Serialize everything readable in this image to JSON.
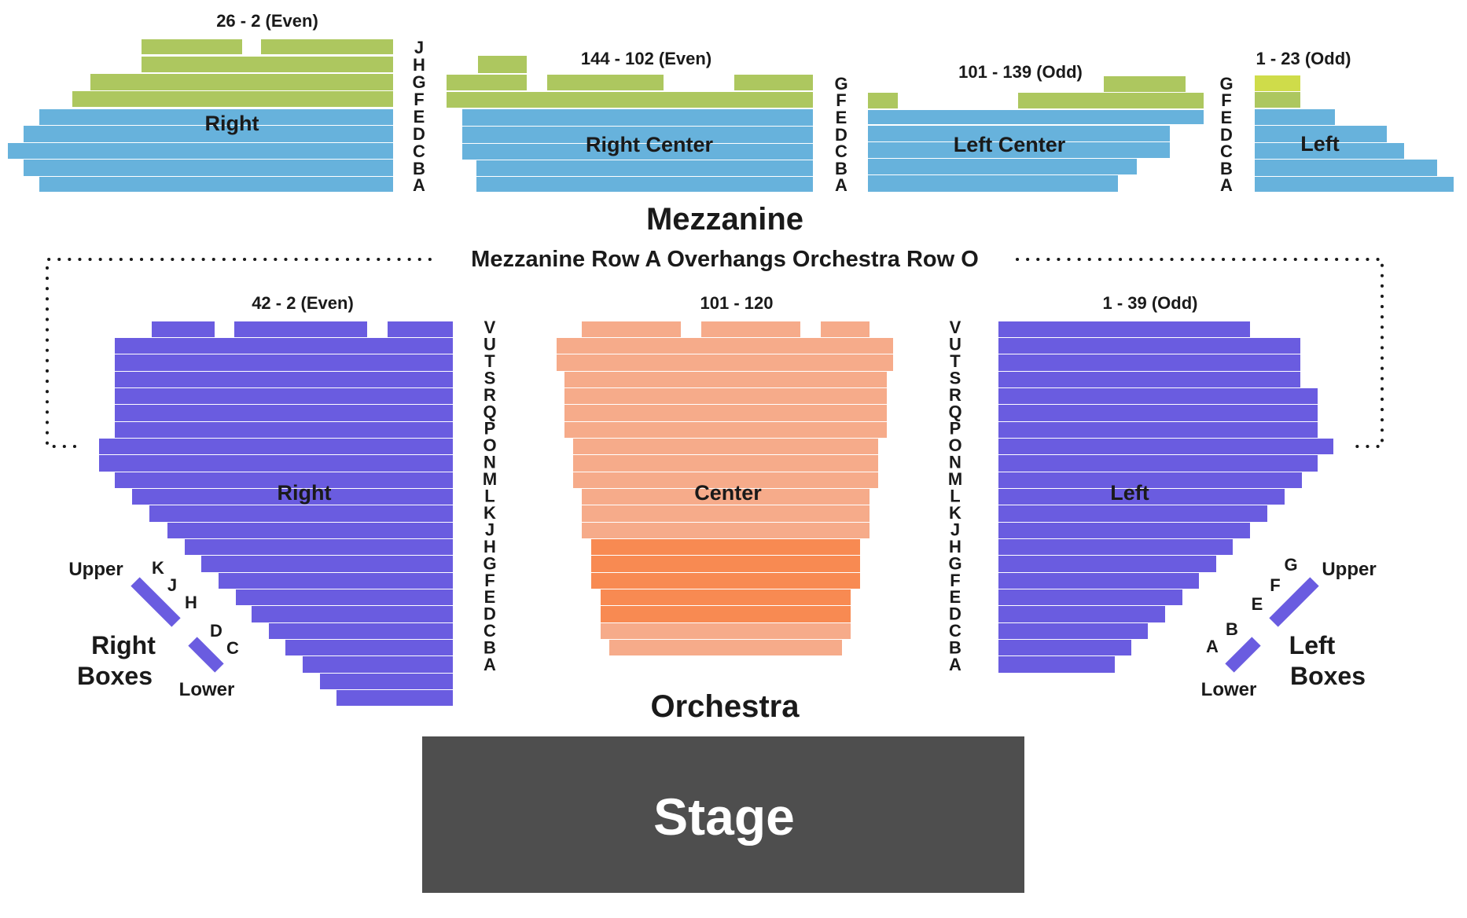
{
  "colors": {
    "mezz_green": "#adc75f",
    "mezz_green_light": "#cfdc4a",
    "mezz_blue": "#67b2dc",
    "orch_side": "#6a5ce0",
    "orch_center": "#f6ab8a",
    "orch_center_front": "#f88a52",
    "stage": "#4e4e4e",
    "text": "#1a1a1a"
  },
  "mezzanine": {
    "title": "Mezzanine",
    "overhang_note": "Mezzanine Row A Overhangs Orchestra Row O",
    "sections": [
      {
        "key": "right",
        "label": "Right",
        "seats": "26 - 2 (Even)"
      },
      {
        "key": "right_center",
        "label": "Right Center",
        "seats": "144 - 102 (Even)"
      },
      {
        "key": "left_center",
        "label": "Left Center",
        "seats": "101 - 139 (Odd)"
      },
      {
        "key": "left",
        "label": "Left",
        "seats": "1 - 23 (Odd)"
      }
    ],
    "rows_right": [
      "J",
      "H",
      "G",
      "F",
      "E",
      "D",
      "C",
      "B",
      "A"
    ],
    "rows_center": [
      "G",
      "F",
      "E",
      "D",
      "C",
      "B",
      "A"
    ],
    "rows_left": [
      "G",
      "F",
      "E",
      "D",
      "C",
      "B",
      "A"
    ]
  },
  "orchestra": {
    "title": "Orchestra",
    "sections": [
      {
        "key": "right",
        "label": "Right",
        "seats": "42 - 2 (Even)"
      },
      {
        "key": "center",
        "label": "Center",
        "seats": "101 - 120"
      },
      {
        "key": "left",
        "label": "Left",
        "seats": "1 - 39 (Odd)"
      }
    ],
    "rows": [
      "V",
      "U",
      "T",
      "S",
      "R",
      "Q",
      "P",
      "O",
      "N",
      "M",
      "L",
      "K",
      "J",
      "H",
      "G",
      "F",
      "E",
      "D",
      "C",
      "B",
      "A"
    ]
  },
  "boxes": {
    "right": {
      "title_line1": "Right",
      "title_line2": "Boxes",
      "upper_label": "Upper",
      "lower_label": "Lower",
      "upper_letters": [
        "K",
        "J",
        "H"
      ],
      "lower_letters": [
        "D",
        "C"
      ]
    },
    "left": {
      "title_line1": "Left",
      "title_line2": "Boxes",
      "upper_label": "Upper",
      "lower_label": "Lower",
      "upper_letters": [
        "G",
        "F",
        "E"
      ],
      "lower_letters": [
        "B",
        "A"
      ]
    }
  },
  "stage": {
    "label": "Stage"
  }
}
